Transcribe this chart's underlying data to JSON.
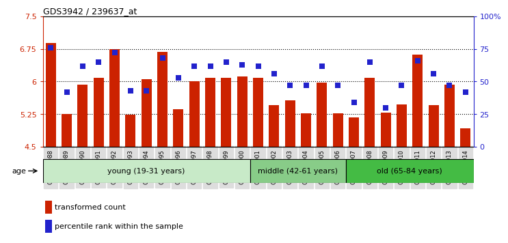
{
  "title": "GDS3942 / 239637_at",
  "samples": [
    "GSM812988",
    "GSM812989",
    "GSM812990",
    "GSM812991",
    "GSM812992",
    "GSM812993",
    "GSM812994",
    "GSM812995",
    "GSM812996",
    "GSM812997",
    "GSM812998",
    "GSM812999",
    "GSM813000",
    "GSM813001",
    "GSM813002",
    "GSM813003",
    "GSM813004",
    "GSM813005",
    "GSM813006",
    "GSM813007",
    "GSM813008",
    "GSM813009",
    "GSM813010",
    "GSM813011",
    "GSM813012",
    "GSM813013",
    "GSM813014"
  ],
  "bar_values": [
    6.88,
    5.25,
    5.93,
    6.08,
    6.75,
    5.24,
    6.05,
    6.68,
    5.36,
    6.0,
    6.08,
    6.08,
    6.12,
    6.08,
    5.45,
    5.56,
    5.27,
    5.97,
    5.27,
    5.18,
    6.08,
    5.28,
    5.47,
    6.62,
    5.45,
    5.93,
    4.93
  ],
  "dot_values": [
    76,
    42,
    62,
    65,
    72,
    43,
    43,
    68,
    53,
    62,
    62,
    65,
    63,
    62,
    56,
    47,
    47,
    62,
    47,
    34,
    65,
    30,
    47,
    66,
    56,
    47,
    42
  ],
  "bar_color": "#cc2200",
  "dot_color": "#2222cc",
  "ylim_left": [
    4.5,
    7.5
  ],
  "ylim_right": [
    0,
    100
  ],
  "yticks_left": [
    4.5,
    5.25,
    6.0,
    6.75,
    7.5
  ],
  "ytick_labels_left": [
    "4.5",
    "5.25",
    "6",
    "6.75",
    "7.5"
  ],
  "yticks_right": [
    0,
    25,
    50,
    75,
    100
  ],
  "ytick_labels_right": [
    "0",
    "25",
    "50",
    "75",
    "100%"
  ],
  "hlines": [
    5.25,
    6.0,
    6.75
  ],
  "groups": [
    {
      "label": "young (19-31 years)",
      "start": 0,
      "end": 13,
      "color": "#c8eac8"
    },
    {
      "label": "middle (42-61 years)",
      "start": 13,
      "end": 19,
      "color": "#88cc88"
    },
    {
      "label": "old (65-84 years)",
      "start": 19,
      "end": 27,
      "color": "#44bb44"
    }
  ],
  "age_label": "age",
  "legend_bar_label": "transformed count",
  "legend_dot_label": "percentile rank within the sample"
}
